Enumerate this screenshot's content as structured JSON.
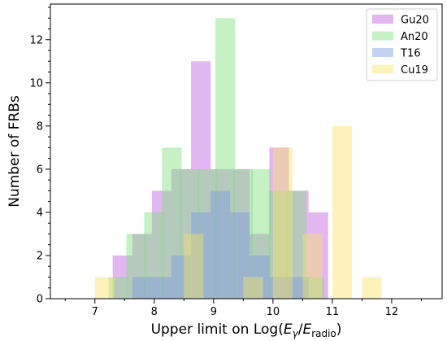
{
  "chart_data": {
    "type": "histogram",
    "title": "",
    "xlabel": {
      "prefix": "Upper limit on Log(",
      "e1": "E",
      "sub1": "γ",
      "slash": "/",
      "e2": "E",
      "sub2": "radio",
      "suffix": ")"
    },
    "ylabel": "Number of FRBs",
    "xlim": [
      6.25,
      12.85
    ],
    "ylim": [
      0,
      13.65
    ],
    "xticks": [
      7,
      8,
      9,
      10,
      11,
      12
    ],
    "yticks": [
      0,
      2,
      4,
      6,
      8,
      10,
      12
    ],
    "legend_position": "top-right",
    "bin_width": 0.33,
    "series": [
      {
        "name": "Gu20",
        "color": "#bf5ee0",
        "bin_starts": [
          7.3,
          7.63,
          7.96,
          8.29,
          8.62,
          8.95,
          9.28,
          9.61,
          9.94,
          10.27,
          10.6
        ],
        "counts": [
          2,
          3,
          5,
          6,
          11,
          6,
          6,
          3,
          7,
          5,
          4
        ]
      },
      {
        "name": "An20",
        "color": "#7fe07f",
        "bin_starts": [
          7.23,
          7.53,
          7.83,
          8.13,
          8.43,
          8.73,
          9.03,
          9.33,
          9.63,
          9.93,
          10.23,
          10.53
        ],
        "counts": [
          1,
          3,
          4,
          7,
          6,
          6,
          13,
          6,
          6,
          5,
          5,
          1
        ]
      },
      {
        "name": "T16",
        "color": "#7f9ae0",
        "bin_starts": [
          7.63,
          7.96,
          8.29,
          8.62,
          8.95,
          9.28,
          9.61,
          9.94,
          10.27
        ],
        "counts": [
          1,
          1,
          2,
          4,
          5,
          4,
          2,
          1,
          1
        ]
      },
      {
        "name": "Cu19",
        "color": "#f7e36a",
        "bin_starts": [
          7.0,
          7.5,
          8.0,
          8.5,
          9.0,
          9.5,
          10.0,
          10.5,
          11.0,
          11.5
        ],
        "counts": [
          1,
          0,
          0,
          3,
          0,
          1,
          7,
          3,
          8,
          1
        ]
      }
    ]
  }
}
